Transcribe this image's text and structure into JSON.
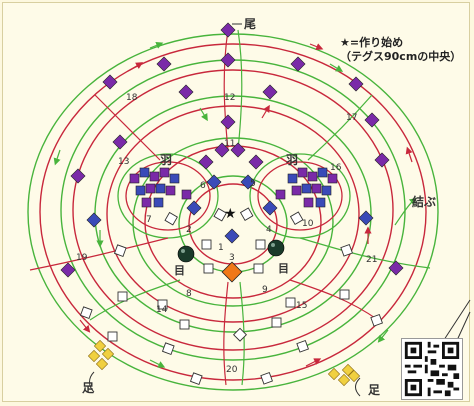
{
  "labels": {
    "tail": "尾",
    "legend_line1": "★=作り始め",
    "legend_line2": "（テグス90cmの中央）",
    "tie": "結ぶ",
    "wing_left": "羽",
    "wing_right": "羽",
    "eye_left": "目",
    "eye_right": "目",
    "foot_left": "足",
    "foot_right": "足"
  },
  "step_numbers": [
    "1",
    "2",
    "3",
    "4",
    "5",
    "6",
    "7",
    "8",
    "9",
    "10",
    "11",
    "12",
    "13",
    "14",
    "15",
    "16",
    "17",
    "18",
    "19",
    "20",
    "21"
  ],
  "colors": {
    "background": "#fefbe8",
    "red_line": "#c8283c",
    "green_line": "#48b43c",
    "purple_bead": "#7a2aa8",
    "blue_bead": "#3a4ab8",
    "orange_bead": "#f07818",
    "yellow_bead": "#f0d040",
    "eye_bead": "#1a3a2a"
  }
}
